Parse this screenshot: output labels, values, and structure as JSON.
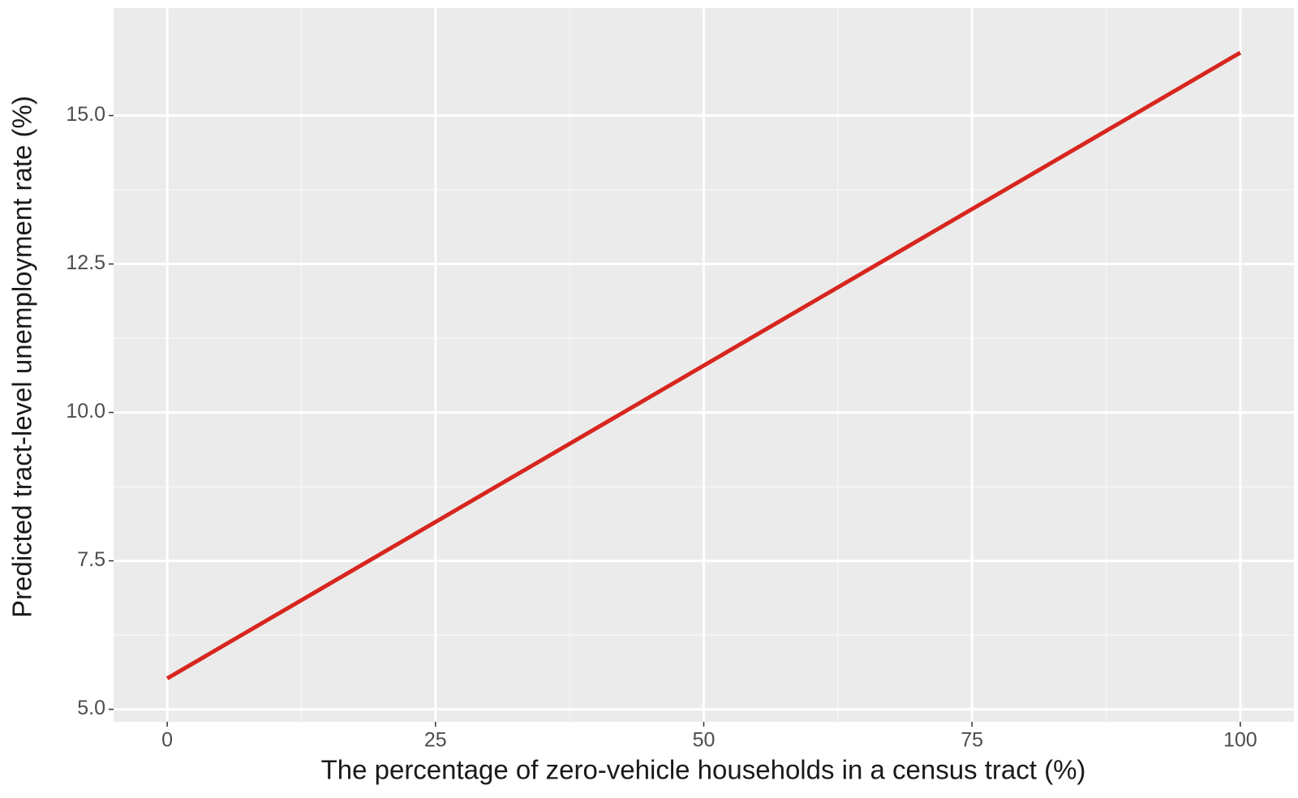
{
  "chart_data": {
    "type": "line",
    "xlabel": "The percentage of zero-vehicle households in a census tract (%)",
    "ylabel": "Predicted tract-level unemployment rate (%)",
    "x": [
      0,
      100
    ],
    "series": [
      {
        "color": "#d7261e",
        "values": [
          5.52,
          16.06
        ]
      }
    ],
    "xlim": [
      -5,
      105
    ],
    "xticks": [
      0,
      25,
      50,
      75,
      100
    ],
    "ylim": [
      4.79,
      16.81
    ],
    "yticks": [
      {
        "value": 5,
        "label": "5.0"
      },
      {
        "value": 7.5,
        "label": "7.5"
      },
      {
        "value": 10,
        "label": "10.0"
      },
      {
        "value": 12.5,
        "label": "12.5"
      },
      {
        "value": 15,
        "label": "15.0"
      }
    ],
    "grid": true
  }
}
